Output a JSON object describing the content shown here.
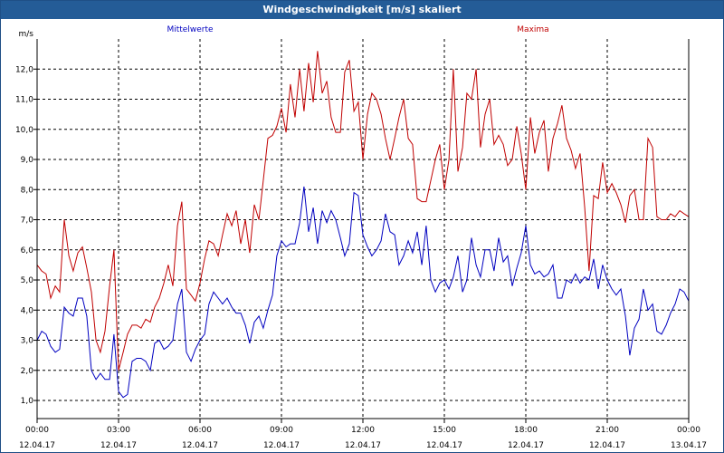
{
  "window": {
    "title": "Windgeschwindigkeit [m/s] skaliert"
  },
  "chart_data": {
    "type": "line",
    "title": "Windgeschwindigkeit [m/s] skaliert",
    "ylabel": "m/s",
    "xlabel": "",
    "ylim": [
      0.4,
      13.0
    ],
    "xlim": [
      0,
      24
    ],
    "grid": true,
    "legend_placement": "top",
    "colors": {
      "Mittelwerte": "#0000c0",
      "Maxima": "#c00000",
      "grid": "#000000",
      "axis": "#000000"
    },
    "yticks": [
      "1,0",
      "2,0",
      "3,0",
      "4,0",
      "5,0",
      "6,0",
      "7,0",
      "8,0",
      "9,0",
      "10,0",
      "11,0",
      "12,0"
    ],
    "xticks": [
      {
        "time": "00:00",
        "date": "12.04.17"
      },
      {
        "time": "03:00",
        "date": "12.04.17"
      },
      {
        "time": "06:00",
        "date": "12.04.17"
      },
      {
        "time": "09:00",
        "date": "12.04.17"
      },
      {
        "time": "12:00",
        "date": "12.04.17"
      },
      {
        "time": "15:00",
        "date": "12.04.17"
      },
      {
        "time": "18:00",
        "date": "12.04.17"
      },
      {
        "time": "21:00",
        "date": "12.04.17"
      },
      {
        "time": "00:00",
        "date": "13.04.17"
      }
    ],
    "series": [
      {
        "name": "Mittelwerte",
        "x": [
          0,
          0.17,
          0.33,
          0.5,
          0.67,
          0.83,
          1.0,
          1.17,
          1.33,
          1.5,
          1.67,
          1.83,
          2.0,
          2.17,
          2.33,
          2.5,
          2.67,
          2.83,
          3.0,
          3.17,
          3.33,
          3.5,
          3.67,
          3.83,
          4.0,
          4.17,
          4.33,
          4.5,
          4.67,
          4.83,
          5.0,
          5.17,
          5.33,
          5.5,
          5.67,
          5.83,
          6.0,
          6.17,
          6.33,
          6.5,
          6.67,
          6.83,
          7.0,
          7.17,
          7.33,
          7.5,
          7.67,
          7.83,
          8.0,
          8.17,
          8.33,
          8.5,
          8.67,
          8.83,
          9.0,
          9.17,
          9.33,
          9.5,
          9.67,
          9.83,
          10.0,
          10.17,
          10.33,
          10.5,
          10.67,
          10.83,
          11.0,
          11.17,
          11.33,
          11.5,
          11.67,
          11.83,
          12.0,
          12.17,
          12.33,
          12.5,
          12.67,
          12.83,
          13.0,
          13.17,
          13.33,
          13.5,
          13.67,
          13.83,
          14.0,
          14.17,
          14.33,
          14.5,
          14.67,
          14.83,
          15.0,
          15.17,
          15.33,
          15.5,
          15.67,
          15.83,
          16.0,
          16.17,
          16.33,
          16.5,
          16.67,
          16.83,
          17.0,
          17.17,
          17.33,
          17.5,
          17.67,
          17.83,
          18.0,
          18.17,
          18.33,
          18.5,
          18.67,
          18.83,
          19.0,
          19.17,
          19.33,
          19.5,
          19.67,
          19.83,
          20.0,
          20.17,
          20.33,
          20.5,
          20.67,
          20.83,
          21.0,
          21.17,
          21.33,
          21.5,
          21.67,
          21.83,
          22.0,
          22.17,
          22.33,
          22.5,
          22.67,
          22.83,
          23.0,
          23.17,
          23.33,
          23.5,
          23.67,
          23.83,
          24.0
        ],
        "y": [
          3.0,
          3.3,
          3.2,
          2.8,
          2.6,
          2.7,
          4.1,
          3.9,
          3.8,
          4.4,
          4.4,
          3.8,
          2.0,
          1.7,
          1.9,
          1.7,
          1.7,
          3.2,
          1.3,
          1.1,
          1.2,
          2.3,
          2.4,
          2.4,
          2.3,
          2.0,
          2.9,
          3.0,
          2.7,
          2.8,
          3.0,
          4.2,
          4.7,
          2.6,
          2.3,
          2.7,
          3.0,
          3.2,
          4.2,
          4.6,
          4.4,
          4.2,
          4.4,
          4.1,
          3.9,
          3.9,
          3.5,
          2.9,
          3.6,
          3.8,
          3.4,
          4.0,
          4.5,
          5.8,
          6.3,
          6.1,
          6.2,
          6.2,
          6.9,
          8.1,
          6.6,
          7.4,
          6.2,
          7.3,
          6.9,
          7.3,
          7.0,
          6.4,
          5.8,
          6.2,
          7.9,
          7.8,
          6.5,
          6.1,
          5.8,
          6.0,
          6.3,
          7.2,
          6.6,
          6.5,
          5.5,
          5.8,
          6.3,
          5.9,
          6.6,
          5.5,
          6.8,
          5.0,
          4.6,
          4.9,
          5.0,
          4.7,
          5.1,
          5.8,
          4.6,
          5.0,
          6.4,
          5.5,
          5.1,
          6.0,
          6.0,
          5.3,
          6.4,
          5.6,
          5.8,
          4.8,
          5.4,
          5.9,
          6.8,
          5.5,
          5.2,
          5.3,
          5.1,
          5.2,
          5.5,
          4.4,
          4.4,
          5.0,
          4.9,
          5.2,
          4.9,
          5.1,
          5.0,
          5.7,
          4.7,
          5.5,
          5.0,
          4.7,
          4.5,
          4.7,
          3.8,
          2.5,
          3.4,
          3.7,
          4.7,
          4.0,
          4.2,
          3.3,
          3.2,
          3.5,
          3.9,
          4.2,
          4.7,
          4.6,
          4.3
        ]
      },
      {
        "name": "Maxima",
        "x": [
          0,
          0.17,
          0.33,
          0.5,
          0.67,
          0.83,
          1.0,
          1.17,
          1.33,
          1.5,
          1.67,
          1.83,
          2.0,
          2.17,
          2.33,
          2.5,
          2.67,
          2.83,
          3.0,
          3.17,
          3.33,
          3.5,
          3.67,
          3.83,
          4.0,
          4.17,
          4.33,
          4.5,
          4.67,
          4.83,
          5.0,
          5.17,
          5.33,
          5.5,
          5.67,
          5.83,
          6.0,
          6.17,
          6.33,
          6.5,
          6.67,
          6.83,
          7.0,
          7.17,
          7.33,
          7.5,
          7.67,
          7.83,
          8.0,
          8.17,
          8.33,
          8.5,
          8.67,
          8.83,
          9.0,
          9.17,
          9.33,
          9.5,
          9.67,
          9.83,
          10.0,
          10.17,
          10.33,
          10.5,
          10.67,
          10.83,
          11.0,
          11.17,
          11.33,
          11.5,
          11.67,
          11.83,
          12.0,
          12.17,
          12.33,
          12.5,
          12.67,
          12.83,
          13.0,
          13.17,
          13.33,
          13.5,
          13.67,
          13.83,
          14.0,
          14.17,
          14.33,
          14.5,
          14.67,
          14.83,
          15.0,
          15.17,
          15.33,
          15.5,
          15.67,
          15.83,
          16.0,
          16.17,
          16.33,
          16.5,
          16.67,
          16.83,
          17.0,
          17.17,
          17.33,
          17.5,
          17.67,
          17.83,
          18.0,
          18.17,
          18.33,
          18.5,
          18.67,
          18.83,
          19.0,
          19.17,
          19.33,
          19.5,
          19.67,
          19.83,
          20.0,
          20.17,
          20.33,
          20.5,
          20.67,
          20.83,
          21.0,
          21.17,
          21.33,
          21.5,
          21.67,
          21.83,
          22.0,
          22.17,
          22.33,
          22.5,
          22.67,
          22.83,
          23.0,
          23.17,
          23.33,
          23.5,
          23.67,
          23.83,
          24.0
        ],
        "y": [
          5.5,
          5.3,
          5.2,
          4.4,
          4.8,
          4.6,
          7.0,
          5.8,
          5.3,
          5.9,
          6.1,
          5.4,
          4.6,
          3.0,
          2.6,
          3.3,
          4.8,
          6.0,
          2.0,
          2.6,
          3.2,
          3.5,
          3.5,
          3.4,
          3.7,
          3.6,
          4.1,
          4.4,
          4.9,
          5.5,
          4.8,
          6.8,
          7.6,
          4.7,
          4.5,
          4.3,
          4.9,
          5.7,
          6.3,
          6.2,
          5.8,
          6.5,
          7.2,
          6.8,
          7.3,
          6.2,
          7.0,
          5.9,
          7.5,
          7.0,
          8.3,
          9.7,
          9.8,
          10.1,
          10.7,
          9.9,
          11.5,
          10.4,
          12.0,
          10.6,
          12.2,
          10.9,
          12.6,
          11.2,
          11.6,
          10.4,
          9.9,
          9.9,
          11.9,
          12.3,
          10.6,
          10.9,
          9.0,
          10.5,
          11.2,
          11.0,
          10.5,
          9.7,
          9.0,
          9.7,
          10.4,
          11.0,
          9.7,
          9.5,
          7.7,
          7.6,
          7.6,
          8.3,
          9.0,
          9.5,
          8.0,
          9.0,
          12.0,
          8.6,
          9.4,
          11.2,
          11.0,
          12.0,
          9.4,
          10.5,
          11.0,
          9.5,
          9.8,
          9.5,
          8.8,
          9.0,
          10.1,
          9.2,
          8.0,
          10.4,
          9.2,
          9.9,
          10.3,
          8.6,
          9.7,
          10.2,
          10.8,
          9.7,
          9.3,
          8.7,
          9.2,
          7.4,
          5.3,
          7.8,
          7.7,
          8.9,
          7.9,
          8.2,
          7.9,
          7.5,
          6.9,
          7.8,
          8.0,
          7.0,
          7.0,
          9.7,
          9.4,
          7.1,
          7.0,
          7.0,
          7.2,
          7.1,
          7.3,
          7.2,
          7.1
        ]
      }
    ]
  }
}
